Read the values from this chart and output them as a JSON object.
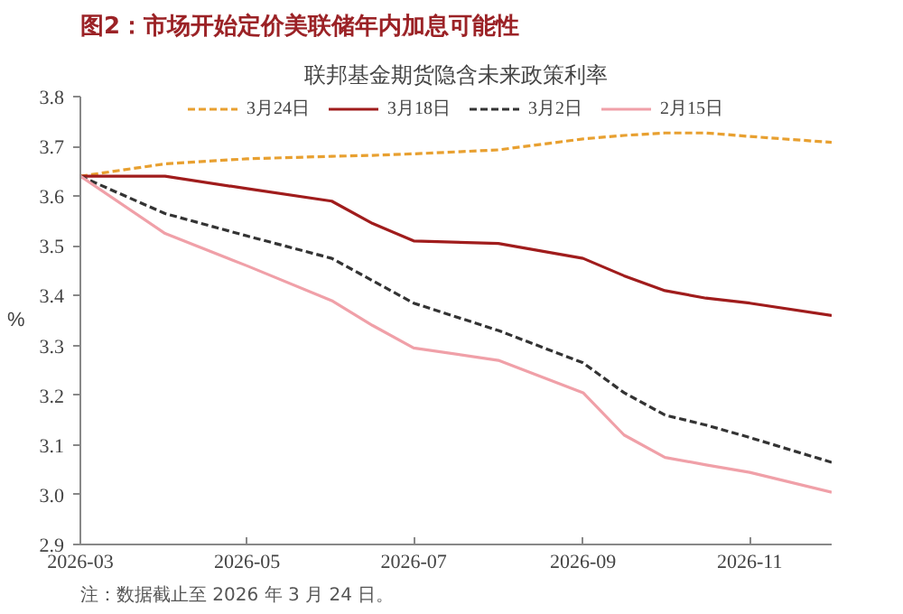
{
  "chart_data": {
    "type": "line",
    "title": "图2：市场开始定价美联储年内加息可能性",
    "subtitle": "联邦基金期货隐含未来政策利率",
    "ylabel": "%",
    "x": [
      "2026-03-01",
      "2026-04-01",
      "2026-05-01",
      "2026-06-01",
      "2026-06-16",
      "2026-07-01",
      "2026-08-01",
      "2026-09-01",
      "2026-09-16",
      "2026-10-01",
      "2026-10-16",
      "2026-11-01",
      "2026-12-01"
    ],
    "series": [
      {
        "name": "3月24日",
        "color": "#e8a030",
        "line_style": "dashed",
        "values": [
          3.64,
          3.665,
          3.675,
          3.68,
          3.682,
          3.685,
          3.693,
          3.715,
          3.722,
          3.727,
          3.727,
          3.72,
          3.708
        ]
      },
      {
        "name": "3月18日",
        "color": "#a01c1c",
        "line_style": "solid",
        "values": [
          3.64,
          3.64,
          3.615,
          3.59,
          3.545,
          3.51,
          3.505,
          3.475,
          3.44,
          3.41,
          3.395,
          3.385,
          3.36
        ]
      },
      {
        "name": "3月2日",
        "color": "#333333",
        "line_style": "dashed",
        "values": [
          3.64,
          3.565,
          3.52,
          3.475,
          3.43,
          3.385,
          3.33,
          3.265,
          3.205,
          3.16,
          3.14,
          3.115,
          3.065
        ]
      },
      {
        "name": "2月15日",
        "color": "#f0a0a8",
        "line_style": "solid",
        "values": [
          3.64,
          3.525,
          3.46,
          3.39,
          3.34,
          3.295,
          3.27,
          3.205,
          3.12,
          3.075,
          3.06,
          3.045,
          3.005
        ]
      }
    ],
    "xlim": [
      "2026-03",
      "2026-12"
    ],
    "xticks": [
      "2026-03",
      "2026-05",
      "2026-07",
      "2026-09",
      "2026-11"
    ],
    "ylim": [
      2.9,
      3.8
    ],
    "yticks": [
      {
        "value": 2.9,
        "label": "2.9"
      },
      {
        "value": 3.0,
        "label": "3.0"
      },
      {
        "value": 3.1,
        "label": "3.1"
      },
      {
        "value": 3.2,
        "label": "3.2"
      },
      {
        "value": 3.3,
        "label": "3.3"
      },
      {
        "value": 3.4,
        "label": "3.4"
      },
      {
        "value": 3.5,
        "label": "3.5"
      },
      {
        "value": 3.6,
        "label": "3.6"
      },
      {
        "value": 3.7,
        "label": "3.7"
      },
      {
        "value": 3.8,
        "label": "3.8"
      }
    ],
    "grid": false,
    "legend": "top",
    "annotations": [
      "注：数据截止至 2026 年 3 月 24 日。"
    ]
  }
}
